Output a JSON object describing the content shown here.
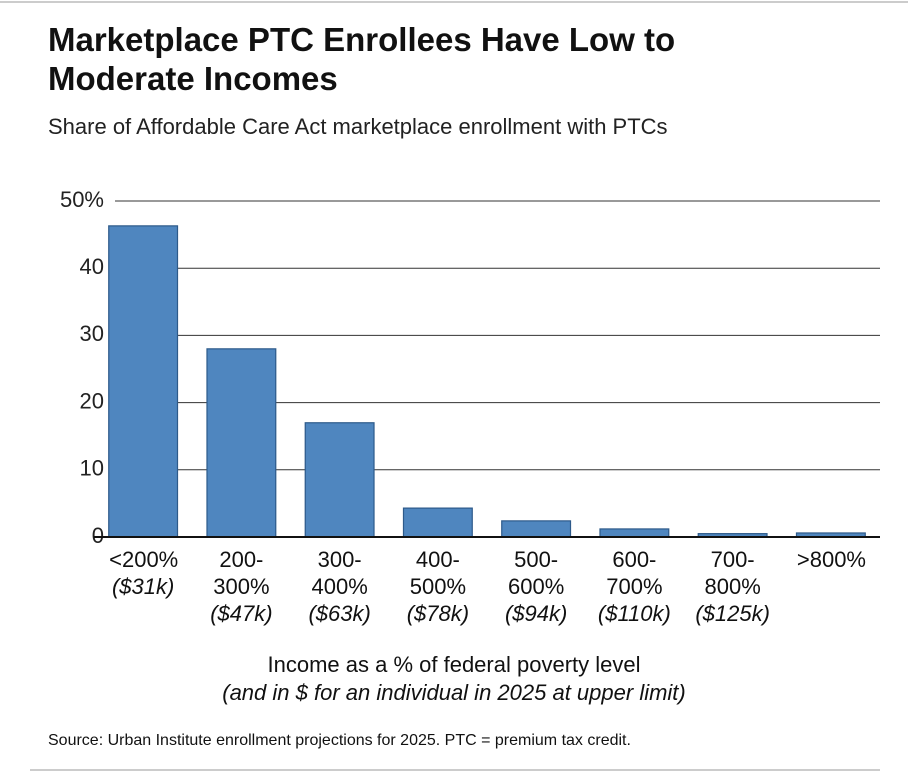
{
  "chart_data": {
    "type": "bar",
    "title": "Marketplace PTC Enrollees Have Low to Moderate Incomes",
    "subtitle": "Share of Affordable Care Act marketplace enrollment with PTCs",
    "categories": [
      "<200%",
      "200-300%",
      "300-400%",
      "400-500%",
      "500-600%",
      "600-700%",
      "700-800%",
      ">800%"
    ],
    "category_notes": [
      "($31k)",
      "($47k)",
      "($63k)",
      "($78k)",
      "($94k)",
      "($110k)",
      "($125k)",
      null
    ],
    "values": [
      46.3,
      28,
      17,
      4.3,
      2.4,
      1.2,
      0.5,
      0.6
    ],
    "color": "#4f86bf",
    "ylim": [
      0,
      50
    ],
    "yticks": [
      0,
      10,
      20,
      30,
      40,
      {
        "value": 50,
        "label": "50%"
      }
    ],
    "grid": true,
    "xlabel": "Income as a % of federal poverty level",
    "xlabel_note": "(and in $ for an individual in 2025 at upper limit)",
    "source": "Source: Urban Institute enrollment projections for 2025. PTC = premium tax credit."
  }
}
